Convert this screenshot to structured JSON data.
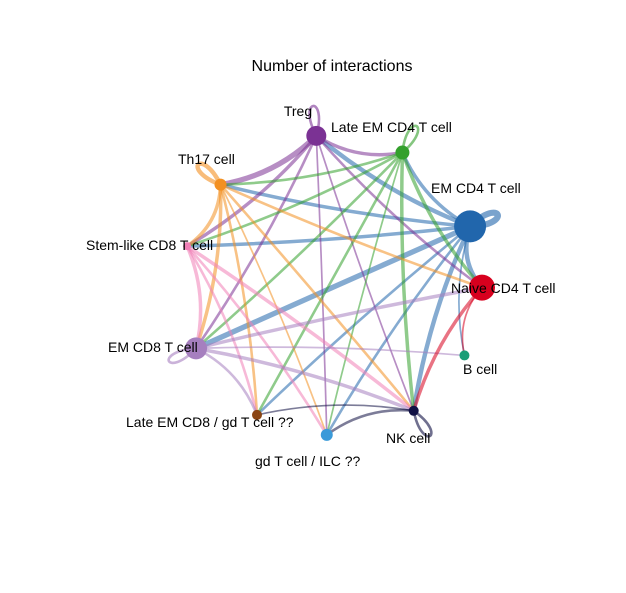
{
  "title": "Number of interactions",
  "nodes": [
    {
      "id": "treg",
      "label": "Treg",
      "color": "#7B3294",
      "size": 10
    },
    {
      "id": "late_em_cd4",
      "label": "Late EM CD4 T cell",
      "color": "#33A02C",
      "size": 7
    },
    {
      "id": "em_cd4",
      "label": "EM CD4 T cell",
      "color": "#2166AC",
      "size": 16
    },
    {
      "id": "naive_cd4",
      "label": "Naive CD4 T cell",
      "color": "#D7001E",
      "size": 13
    },
    {
      "id": "b_cell",
      "label": "B cell",
      "color": "#1B9E77",
      "size": 5
    },
    {
      "id": "nk",
      "label": "NK cell",
      "color": "#111144",
      "size": 5
    },
    {
      "id": "gd_ilc",
      "label": "gd T cell / ILC ??",
      "color": "#3A9AD9",
      "size": 6
    },
    {
      "id": "late_em_cd8",
      "label": "Late EM CD8 / gd T cell ??",
      "color": "#8B4513",
      "size": 5
    },
    {
      "id": "em_cd8",
      "label": "EM CD8 T cell",
      "color": "#A67FBF",
      "size": 11
    },
    {
      "id": "stem_cd8",
      "label": "Stem-like CD8 T cell",
      "color": "#F07FB6",
      "size": 4
    },
    {
      "id": "th17",
      "label": "Th17 cell",
      "color": "#F39021",
      "size": 6
    }
  ],
  "edges": [
    {
      "from": "em_cd4",
      "to": "em_cd8",
      "weight": 5
    },
    {
      "from": "em_cd4",
      "to": "stem_cd8",
      "weight": 3
    },
    {
      "from": "em_cd4",
      "to": "th17",
      "weight": 3
    },
    {
      "from": "em_cd4",
      "to": "treg",
      "weight": 4
    },
    {
      "from": "em_cd4",
      "to": "late_em_cd4",
      "weight": 3
    },
    {
      "from": "em_cd4",
      "to": "naive_cd4",
      "weight": 4
    },
    {
      "from": "em_cd4",
      "to": "nk",
      "weight": 4
    },
    {
      "from": "em_cd4",
      "to": "gd_ilc",
      "weight": 2
    },
    {
      "from": "em_cd4",
      "to": "late_em_cd8",
      "weight": 2
    },
    {
      "from": "em_cd4",
      "to": "b_cell",
      "weight": 1
    },
    {
      "from": "treg",
      "to": "th17",
      "weight": 5
    },
    {
      "from": "treg",
      "to": "late_em_cd4",
      "weight": 3
    },
    {
      "from": "treg",
      "to": "stem_cd8",
      "weight": 3
    },
    {
      "from": "treg",
      "to": "em_cd8",
      "weight": 2
    },
    {
      "from": "treg",
      "to": "naive_cd4",
      "weight": 2
    },
    {
      "from": "treg",
      "to": "nk",
      "weight": 1
    },
    {
      "from": "treg",
      "to": "gd_ilc",
      "weight": 1
    },
    {
      "from": "late_em_cd4",
      "to": "th17",
      "weight": 2
    },
    {
      "from": "late_em_cd4",
      "to": "stem_cd8",
      "weight": 2
    },
    {
      "from": "late_em_cd4",
      "to": "em_cd8",
      "weight": 2
    },
    {
      "from": "late_em_cd4",
      "to": "nk",
      "weight": 3
    },
    {
      "from": "late_em_cd4",
      "to": "naive_cd4",
      "weight": 3
    },
    {
      "from": "late_em_cd4",
      "to": "late_em_cd8",
      "weight": 2
    },
    {
      "from": "late_em_cd4",
      "to": "gd_ilc",
      "weight": 1
    },
    {
      "from": "th17",
      "to": "stem_cd8",
      "weight": 3
    },
    {
      "from": "th17",
      "to": "em_cd8",
      "weight": 3
    },
    {
      "from": "th17",
      "to": "late_em_cd8",
      "weight": 2
    },
    {
      "from": "th17",
      "to": "nk",
      "weight": 2
    },
    {
      "from": "th17",
      "to": "naive_cd4",
      "weight": 2
    },
    {
      "from": "th17",
      "to": "gd_ilc",
      "weight": 1
    },
    {
      "from": "stem_cd8",
      "to": "em_cd8",
      "weight": 3
    },
    {
      "from": "stem_cd8",
      "to": "late_em_cd8",
      "weight": 2
    },
    {
      "from": "stem_cd8",
      "to": "nk",
      "weight": 3
    },
    {
      "from": "stem_cd8",
      "to": "gd_ilc",
      "weight": 2
    },
    {
      "from": "em_cd8",
      "to": "naive_cd4",
      "weight": 3
    },
    {
      "from": "em_cd8",
      "to": "nk",
      "weight": 3
    },
    {
      "from": "em_cd8",
      "to": "late_em_cd8",
      "weight": 2
    },
    {
      "from": "em_cd8",
      "to": "b_cell",
      "weight": 1
    },
    {
      "from": "naive_cd4",
      "to": "nk",
      "weight": 3
    },
    {
      "from": "naive_cd4",
      "to": "b_cell",
      "weight": 1
    },
    {
      "from": "nk",
      "to": "gd_ilc",
      "weight": 2
    },
    {
      "from": "nk",
      "to": "late_em_cd8",
      "weight": 1
    }
  ],
  "self_loops": [
    {
      "node": "treg",
      "weight": 2
    },
    {
      "node": "late_em_cd4",
      "weight": 2
    },
    {
      "node": "em_cd4",
      "weight": 6
    },
    {
      "node": "th17",
      "weight": 4
    },
    {
      "node": "em_cd8",
      "weight": 2
    },
    {
      "node": "nk",
      "weight": 2
    }
  ]
}
